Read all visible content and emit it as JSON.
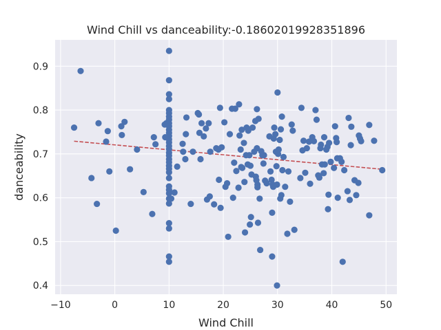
{
  "chart_data": {
    "type": "scatter",
    "title": "Wind Chill vs danceability:-0.18602019928351896",
    "xlabel": "Wind Chill",
    "ylabel": "danceability",
    "xlim": [
      -11,
      52
    ],
    "ylim": [
      0.38,
      0.96
    ],
    "xticks": [
      -10,
      0,
      10,
      20,
      30,
      40,
      50
    ],
    "xtick_labels": [
      "−10",
      "0",
      "10",
      "20",
      "30",
      "40",
      "50"
    ],
    "yticks": [
      0.4,
      0.5,
      0.6,
      0.7,
      0.8,
      0.9
    ],
    "ytick_labels": [
      "0.4",
      "0.5",
      "0.6",
      "0.7",
      "0.8",
      "0.9"
    ],
    "grid": true,
    "point_color": "#4c72b0",
    "trend_color": "#c44e52",
    "background_color": "#eaeaf2",
    "trendline": {
      "x": [
        -7.5,
        49.3
      ],
      "y": [
        0.729,
        0.665
      ]
    },
    "points": [
      {
        "x": -7.5,
        "y": 0.76
      },
      {
        "x": -6.3,
        "y": 0.889
      },
      {
        "x": -4.3,
        "y": 0.645
      },
      {
        "x": -3.3,
        "y": 0.586
      },
      {
        "x": -3.0,
        "y": 0.77
      },
      {
        "x": -1.6,
        "y": 0.728
      },
      {
        "x": -1.3,
        "y": 0.752
      },
      {
        "x": -1.0,
        "y": 0.66
      },
      {
        "x": 0.2,
        "y": 0.525
      },
      {
        "x": 1.2,
        "y": 0.763
      },
      {
        "x": 1.3,
        "y": 0.743
      },
      {
        "x": 1.8,
        "y": 0.773
      },
      {
        "x": 2.8,
        "y": 0.665
      },
      {
        "x": 4.1,
        "y": 0.71
      },
      {
        "x": 5.3,
        "y": 0.613
      },
      {
        "x": 6.9,
        "y": 0.563
      },
      {
        "x": 7.2,
        "y": 0.738
      },
      {
        "x": 7.5,
        "y": 0.722
      },
      {
        "x": 9.2,
        "y": 0.767
      },
      {
        "x": 9.3,
        "y": 0.738
      },
      {
        "x": 9.5,
        "y": 0.77
      },
      {
        "x": 10.0,
        "y": 0.935
      },
      {
        "x": 10.0,
        "y": 0.868
      },
      {
        "x": 10.0,
        "y": 0.836
      },
      {
        "x": 10.0,
        "y": 0.825
      },
      {
        "x": 10.0,
        "y": 0.8
      },
      {
        "x": 10.0,
        "y": 0.793
      },
      {
        "x": 10.0,
        "y": 0.785
      },
      {
        "x": 10.0,
        "y": 0.778
      },
      {
        "x": 10.0,
        "y": 0.77
      },
      {
        "x": 10.0,
        "y": 0.763
      },
      {
        "x": 10.0,
        "y": 0.755
      },
      {
        "x": 10.0,
        "y": 0.748
      },
      {
        "x": 10.0,
        "y": 0.741
      },
      {
        "x": 10.0,
        "y": 0.733
      },
      {
        "x": 10.0,
        "y": 0.726
      },
      {
        "x": 10.0,
        "y": 0.718
      },
      {
        "x": 10.0,
        "y": 0.711
      },
      {
        "x": 10.0,
        "y": 0.703
      },
      {
        "x": 10.0,
        "y": 0.696
      },
      {
        "x": 10.0,
        "y": 0.688
      },
      {
        "x": 10.0,
        "y": 0.681
      },
      {
        "x": 10.0,
        "y": 0.673
      },
      {
        "x": 10.0,
        "y": 0.666
      },
      {
        "x": 10.0,
        "y": 0.658
      },
      {
        "x": 10.0,
        "y": 0.645
      },
      {
        "x": 10.0,
        "y": 0.626
      },
      {
        "x": 10.0,
        "y": 0.618
      },
      {
        "x": 10.0,
        "y": 0.61
      },
      {
        "x": 10.0,
        "y": 0.598
      },
      {
        "x": 10.0,
        "y": 0.587
      },
      {
        "x": 10.0,
        "y": 0.542
      },
      {
        "x": 10.0,
        "y": 0.53
      },
      {
        "x": 10.0,
        "y": 0.466
      },
      {
        "x": 10.0,
        "y": 0.454
      },
      {
        "x": 10.4,
        "y": 0.598
      },
      {
        "x": 11.0,
        "y": 0.612
      },
      {
        "x": 11.5,
        "y": 0.671
      },
      {
        "x": 12.5,
        "y": 0.723
      },
      {
        "x": 12.6,
        "y": 0.705
      },
      {
        "x": 13.0,
        "y": 0.688
      },
      {
        "x": 13.1,
        "y": 0.745
      },
      {
        "x": 13.2,
        "y": 0.783
      },
      {
        "x": 14.0,
        "y": 0.586
      },
      {
        "x": 14.4,
        "y": 0.705
      },
      {
        "x": 15.3,
        "y": 0.793
      },
      {
        "x": 15.5,
        "y": 0.79
      },
      {
        "x": 15.6,
        "y": 0.748
      },
      {
        "x": 15.8,
        "y": 0.688
      },
      {
        "x": 16.0,
        "y": 0.77
      },
      {
        "x": 16.4,
        "y": 0.74
      },
      {
        "x": 16.8,
        "y": 0.758
      },
      {
        "x": 17.0,
        "y": 0.596
      },
      {
        "x": 17.3,
        "y": 0.77
      },
      {
        "x": 17.5,
        "y": 0.603
      },
      {
        "x": 17.6,
        "y": 0.705
      },
      {
        "x": 18.3,
        "y": 0.585
      },
      {
        "x": 18.7,
        "y": 0.713
      },
      {
        "x": 19.1,
        "y": 0.71
      },
      {
        "x": 19.2,
        "y": 0.641
      },
      {
        "x": 19.4,
        "y": 0.805
      },
      {
        "x": 19.5,
        "y": 0.577
      },
      {
        "x": 19.7,
        "y": 0.715
      },
      {
        "x": 20.2,
        "y": 0.772
      },
      {
        "x": 20.4,
        "y": 0.625
      },
      {
        "x": 20.7,
        "y": 0.633
      },
      {
        "x": 20.9,
        "y": 0.511
      },
      {
        "x": 21.2,
        "y": 0.745
      },
      {
        "x": 21.6,
        "y": 0.803
      },
      {
        "x": 21.8,
        "y": 0.6
      },
      {
        "x": 22.0,
        "y": 0.68
      },
      {
        "x": 22.2,
        "y": 0.803
      },
      {
        "x": 22.4,
        "y": 0.661
      },
      {
        "x": 22.8,
        "y": 0.623
      },
      {
        "x": 22.9,
        "y": 0.813
      },
      {
        "x": 23.0,
        "y": 0.742
      },
      {
        "x": 23.2,
        "y": 0.71
      },
      {
        "x": 23.3,
        "y": 0.67
      },
      {
        "x": 23.4,
        "y": 0.755
      },
      {
        "x": 23.5,
        "y": 0.668
      },
      {
        "x": 23.8,
        "y": 0.725
      },
      {
        "x": 23.9,
        "y": 0.636
      },
      {
        "x": 24.0,
        "y": 0.521
      },
      {
        "x": 24.2,
        "y": 0.697
      },
      {
        "x": 24.3,
        "y": 0.76
      },
      {
        "x": 24.5,
        "y": 0.676
      },
      {
        "x": 24.6,
        "y": 0.753
      },
      {
        "x": 24.8,
        "y": 0.697
      },
      {
        "x": 24.9,
        "y": 0.539
      },
      {
        "x": 25.0,
        "y": 0.673
      },
      {
        "x": 25.1,
        "y": 0.556
      },
      {
        "x": 25.2,
        "y": 0.653
      },
      {
        "x": 25.4,
        "y": 0.76
      },
      {
        "x": 25.7,
        "y": 0.705
      },
      {
        "x": 25.9,
        "y": 0.775
      },
      {
        "x": 26.0,
        "y": 0.648
      },
      {
        "x": 26.1,
        "y": 0.64
      },
      {
        "x": 26.2,
        "y": 0.802
      },
      {
        "x": 26.2,
        "y": 0.713
      },
      {
        "x": 26.3,
        "y": 0.63
      },
      {
        "x": 26.3,
        "y": 0.624
      },
      {
        "x": 26.4,
        "y": 0.543
      },
      {
        "x": 26.5,
        "y": 0.78
      },
      {
        "x": 26.7,
        "y": 0.598
      },
      {
        "x": 26.8,
        "y": 0.481
      },
      {
        "x": 27.0,
        "y": 0.706
      },
      {
        "x": 27.2,
        "y": 0.697
      },
      {
        "x": 27.4,
        "y": 0.678
      },
      {
        "x": 27.5,
        "y": 0.697
      },
      {
        "x": 27.7,
        "y": 0.639
      },
      {
        "x": 28.0,
        "y": 0.633
      },
      {
        "x": 28.5,
        "y": 0.74
      },
      {
        "x": 28.7,
        "y": 0.66
      },
      {
        "x": 28.9,
        "y": 0.641
      },
      {
        "x": 29.0,
        "y": 0.566
      },
      {
        "x": 29.0,
        "y": 0.466
      },
      {
        "x": 29.1,
        "y": 0.63
      },
      {
        "x": 29.2,
        "y": 0.625
      },
      {
        "x": 29.3,
        "y": 0.735
      },
      {
        "x": 29.4,
        "y": 0.76
      },
      {
        "x": 29.6,
        "y": 0.745
      },
      {
        "x": 29.7,
        "y": 0.705
      },
      {
        "x": 29.8,
        "y": 0.672
      },
      {
        "x": 29.9,
        "y": 0.63
      },
      {
        "x": 29.9,
        "y": 0.4
      },
      {
        "x": 30.0,
        "y": 0.84
      },
      {
        "x": 30.1,
        "y": 0.7
      },
      {
        "x": 30.2,
        "y": 0.71
      },
      {
        "x": 30.4,
        "y": 0.732
      },
      {
        "x": 30.5,
        "y": 0.598
      },
      {
        "x": 30.6,
        "y": 0.756
      },
      {
        "x": 30.7,
        "y": 0.606
      },
      {
        "x": 30.8,
        "y": 0.785
      },
      {
        "x": 30.9,
        "y": 0.663
      },
      {
        "x": 31.1,
        "y": 0.693
      },
      {
        "x": 31.4,
        "y": 0.625
      },
      {
        "x": 31.8,
        "y": 0.518
      },
      {
        "x": 32.0,
        "y": 0.66
      },
      {
        "x": 32.3,
        "y": 0.591
      },
      {
        "x": 32.6,
        "y": 0.767
      },
      {
        "x": 32.8,
        "y": 0.753
      },
      {
        "x": 33.1,
        "y": 0.527
      },
      {
        "x": 34.2,
        "y": 0.645
      },
      {
        "x": 34.4,
        "y": 0.805
      },
      {
        "x": 34.6,
        "y": 0.708
      },
      {
        "x": 34.8,
        "y": 0.73
      },
      {
        "x": 35.1,
        "y": 0.657
      },
      {
        "x": 35.4,
        "y": 0.713
      },
      {
        "x": 35.8,
        "y": 0.728
      },
      {
        "x": 36.0,
        "y": 0.632
      },
      {
        "x": 36.4,
        "y": 0.738
      },
      {
        "x": 36.7,
        "y": 0.729
      },
      {
        "x": 37.0,
        "y": 0.8
      },
      {
        "x": 37.2,
        "y": 0.778
      },
      {
        "x": 37.5,
        "y": 0.651
      },
      {
        "x": 37.7,
        "y": 0.646
      },
      {
        "x": 37.9,
        "y": 0.713
      },
      {
        "x": 38.0,
        "y": 0.721
      },
      {
        "x": 38.2,
        "y": 0.676
      },
      {
        "x": 38.5,
        "y": 0.656
      },
      {
        "x": 38.6,
        "y": 0.738
      },
      {
        "x": 38.7,
        "y": 0.676
      },
      {
        "x": 39.0,
        "y": 0.71
      },
      {
        "x": 39.2,
        "y": 0.716
      },
      {
        "x": 39.3,
        "y": 0.574
      },
      {
        "x": 39.4,
        "y": 0.607
      },
      {
        "x": 39.5,
        "y": 0.725
      },
      {
        "x": 39.8,
        "y": 0.682
      },
      {
        "x": 40.4,
        "y": 0.668
      },
      {
        "x": 40.6,
        "y": 0.763
      },
      {
        "x": 40.8,
        "y": 0.736
      },
      {
        "x": 40.9,
        "y": 0.727
      },
      {
        "x": 41.0,
        "y": 0.69
      },
      {
        "x": 41.1,
        "y": 0.6
      },
      {
        "x": 41.5,
        "y": 0.69
      },
      {
        "x": 41.8,
        "y": 0.682
      },
      {
        "x": 42.0,
        "y": 0.454
      },
      {
        "x": 42.3,
        "y": 0.663
      },
      {
        "x": 42.9,
        "y": 0.615
      },
      {
        "x": 43.1,
        "y": 0.782
      },
      {
        "x": 43.3,
        "y": 0.595
      },
      {
        "x": 43.5,
        "y": 0.72
      },
      {
        "x": 43.6,
        "y": 0.762
      },
      {
        "x": 44.2,
        "y": 0.64
      },
      {
        "x": 44.5,
        "y": 0.606
      },
      {
        "x": 44.9,
        "y": 0.634
      },
      {
        "x": 45.0,
        "y": 0.742
      },
      {
        "x": 45.2,
        "y": 0.735
      },
      {
        "x": 45.4,
        "y": 0.729
      },
      {
        "x": 46.9,
        "y": 0.766
      },
      {
        "x": 46.9,
        "y": 0.56
      },
      {
        "x": 47.8,
        "y": 0.73
      },
      {
        "x": 49.3,
        "y": 0.663
      }
    ]
  }
}
